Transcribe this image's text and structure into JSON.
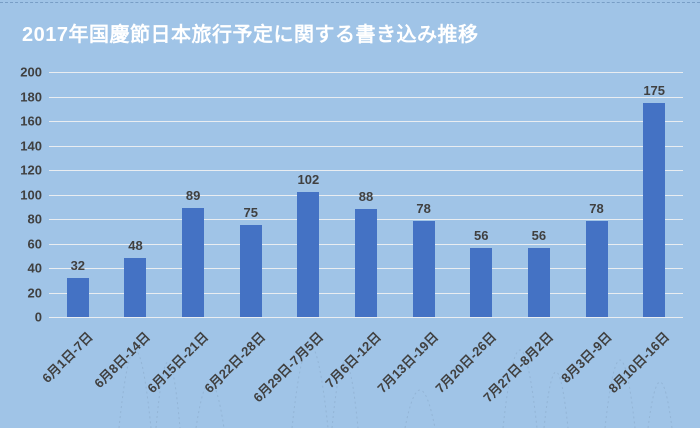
{
  "page": {
    "background_color": "#A0C4E7",
    "top_dash_color": "rgba(93,133,176,0.6)"
  },
  "header": {
    "title": "2017年国慶節日本旅行予定に関する書き込み推移",
    "title_color": "#FFFFFF"
  },
  "chart_data": {
    "type": "bar",
    "title": "2017年国慶節日本旅行予定に関する書き込み推移",
    "categories": [
      "6月1日-7日",
      "6月8日-14日",
      "6月15日-21日",
      "6月22日-28日",
      "6月29日-7月5日",
      "7月6日-12日",
      "7月13日-19日",
      "7月20日-26日",
      "7月27日-8月2日",
      "8月3日-9日",
      "8月10日-16日"
    ],
    "values": [
      32,
      48,
      89,
      75,
      102,
      88,
      78,
      56,
      56,
      78,
      175
    ],
    "data_labels": [
      32,
      48,
      89,
      75,
      102,
      88,
      78,
      56,
      56,
      78,
      175
    ],
    "xlabel": "",
    "ylabel": "",
    "ylim": [
      0,
      200
    ],
    "yticks": [
      0,
      20,
      40,
      60,
      80,
      100,
      120,
      140,
      160,
      180,
      200
    ],
    "grid": true,
    "legend": false,
    "x_label_rotation_deg": 45,
    "bar_color": "#4472C4",
    "axis_text_color": "#404040",
    "gridline_color": "rgba(243,243,243,0.88)"
  }
}
